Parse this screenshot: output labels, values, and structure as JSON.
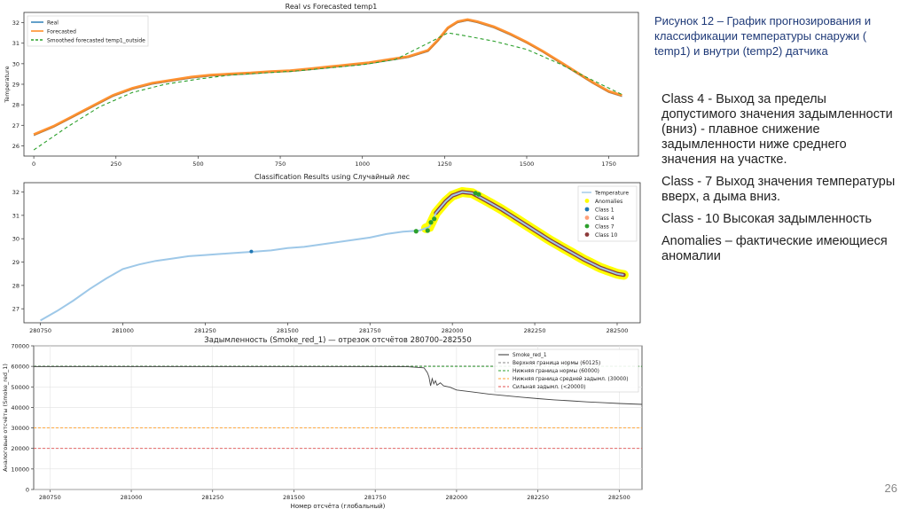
{
  "caption": "Рисунок 12 – График прогнозирования и классификации температуры снаружи ( temp1) и внутри (temp2) датчика",
  "descriptions": [
    "Class 4 - Выход за пределы допустимого значения задымленности (вниз) - плавное снижение задымленности ниже среднего значения на участке.",
    "Class - 7 Выход значения температуры вверх, а дыма вниз.",
    "Class - 10 Высокая задымленность",
    "Anomalies – фактические имеющиеся аномалии"
  ],
  "page_number": "26",
  "chart_data": [
    {
      "type": "line",
      "title": "Real vs Forecasted temp1",
      "xlabel": "",
      "ylabel": "Temperature",
      "xlim": [
        -30,
        1840
      ],
      "ylim": [
        25.5,
        32.5
      ],
      "x_ticks": [
        0,
        250,
        500,
        750,
        1000,
        1250,
        1500,
        1750
      ],
      "y_ticks": [
        26,
        27,
        28,
        29,
        30,
        31,
        32
      ],
      "legend": "top-left",
      "series": [
        {
          "name": "Real",
          "color": "#1f77b4",
          "x": [
            0,
            60,
            120,
            180,
            240,
            300,
            360,
            420,
            480,
            540,
            600,
            660,
            720,
            780,
            840,
            900,
            960,
            1020,
            1080,
            1140,
            1200,
            1230,
            1260,
            1290,
            1320,
            1350,
            1400,
            1450,
            1500,
            1550,
            1600,
            1650,
            1700,
            1750,
            1790
          ],
          "y": [
            26.5,
            26.9,
            27.4,
            27.9,
            28.4,
            28.75,
            29.0,
            29.15,
            29.3,
            29.4,
            29.45,
            29.5,
            29.58,
            29.62,
            29.7,
            29.8,
            29.9,
            30.0,
            30.15,
            30.3,
            30.6,
            31.1,
            31.7,
            32.0,
            32.1,
            32.0,
            31.75,
            31.4,
            31.0,
            30.55,
            30.05,
            29.55,
            29.05,
            28.6,
            28.4
          ]
        },
        {
          "name": "Forecasted",
          "color": "#ff7f0e",
          "x": [
            0,
            60,
            120,
            180,
            240,
            300,
            360,
            420,
            480,
            540,
            600,
            660,
            720,
            780,
            840,
            900,
            960,
            1020,
            1080,
            1140,
            1200,
            1230,
            1260,
            1290,
            1320,
            1350,
            1400,
            1450,
            1500,
            1550,
            1600,
            1650,
            1700,
            1750,
            1790
          ],
          "y": [
            26.55,
            26.95,
            27.45,
            27.95,
            28.45,
            28.8,
            29.05,
            29.2,
            29.35,
            29.45,
            29.5,
            29.55,
            29.62,
            29.66,
            29.75,
            29.85,
            29.95,
            30.05,
            30.2,
            30.35,
            30.65,
            31.15,
            31.75,
            32.05,
            32.15,
            32.05,
            31.8,
            31.45,
            31.05,
            30.6,
            30.1,
            29.6,
            29.1,
            28.65,
            28.45
          ]
        },
        {
          "name": "Smoothed forecasted temp1_outside",
          "color": "#2ca02c",
          "dashed": true,
          "x": [
            0,
            100,
            200,
            300,
            400,
            500,
            600,
            700,
            800,
            900,
            1000,
            1100,
            1200,
            1260,
            1300,
            1400,
            1500,
            1600,
            1700,
            1790
          ],
          "y": [
            25.8,
            26.9,
            27.9,
            28.6,
            29.0,
            29.25,
            29.45,
            29.55,
            29.65,
            29.8,
            29.95,
            30.2,
            31.0,
            31.5,
            31.4,
            31.1,
            30.7,
            30.0,
            29.2,
            28.5
          ]
        }
      ]
    },
    {
      "type": "scatter",
      "title": "Classification Results using Случайный лес",
      "xlabel": "",
      "ylabel": "",
      "xlim": [
        280700,
        282570
      ],
      "ylim": [
        26.4,
        32.4
      ],
      "x_ticks": [
        280750,
        281000,
        281250,
        281500,
        281750,
        282000,
        282250,
        282500
      ],
      "y_ticks": [
        27,
        28,
        29,
        30,
        31,
        32
      ],
      "legend": "top-right",
      "series": [
        {
          "name": "Temperature",
          "color": "#9ec8e8",
          "style": "line",
          "x": [
            280750,
            280800,
            280850,
            280900,
            280950,
            281000,
            281050,
            281100,
            281150,
            281200,
            281250,
            281300,
            281350,
            281400,
            281450,
            281500,
            281550,
            281600,
            281650,
            281700,
            281750,
            281800,
            281850,
            281900,
            281930,
            281950,
            281980,
            282000,
            282030,
            282060,
            282100,
            282150,
            282200,
            282250,
            282300,
            282350,
            282400,
            282450,
            282500,
            282520
          ],
          "y": [
            26.5,
            26.9,
            27.35,
            27.85,
            28.3,
            28.7,
            28.9,
            29.05,
            29.15,
            29.25,
            29.3,
            29.35,
            29.4,
            29.45,
            29.5,
            29.6,
            29.65,
            29.75,
            29.85,
            29.95,
            30.05,
            30.2,
            30.3,
            30.35,
            30.5,
            31.1,
            31.6,
            31.85,
            32.0,
            31.95,
            31.65,
            31.25,
            30.8,
            30.35,
            29.9,
            29.5,
            29.1,
            28.75,
            28.5,
            28.45
          ]
        },
        {
          "name": "Anomalies",
          "color": "#ffff00",
          "x_range": [
            281920,
            282520
          ]
        },
        {
          "name": "Class 1",
          "color": "#1f77b4",
          "x": [
            281390
          ],
          "y": [
            29.45
          ]
        },
        {
          "name": "Class 4",
          "color": "#ffa07a",
          "x": [],
          "y": []
        },
        {
          "name": "Class 7",
          "color": "#2ca02c",
          "x": [
            281890,
            281925,
            281935,
            281945,
            282070,
            282080
          ],
          "y": [
            30.32,
            30.35,
            30.7,
            30.85,
            31.95,
            31.9
          ]
        },
        {
          "name": "Class 10",
          "color": "#8c3a3a",
          "x_range": [
            281950,
            282520
          ]
        }
      ]
    },
    {
      "type": "line",
      "title": "Задымленность (Smoke_red_1) — отрезок отсчётов 280700–282550",
      "xlabel": "Номер отсчёта (глобальный)",
      "ylabel": "Аналоговые отсчёты (Smoke_red_1)",
      "xlim": [
        280700,
        282570
      ],
      "ylim": [
        0,
        70000
      ],
      "x_ticks": [
        280750,
        281000,
        281250,
        281500,
        281750,
        282000,
        282250,
        282500
      ],
      "y_ticks": [
        0,
        10000,
        20000,
        30000,
        40000,
        50000,
        60000,
        70000
      ],
      "grid": true,
      "legend": "top-right",
      "series": [
        {
          "name": "Smoke_red_1",
          "color": "#444444",
          "x": [
            280700,
            281000,
            281500,
            281850,
            281900,
            281910,
            281915,
            281920,
            281925,
            281930,
            281935,
            281940,
            281950,
            281960,
            281980,
            282000,
            282050,
            282100,
            282150,
            282200,
            282250,
            282300,
            282350,
            282400,
            282450,
            282500,
            282570
          ],
          "y": [
            59900,
            59900,
            59900,
            59800,
            59300,
            57000,
            55000,
            50500,
            54000,
            51500,
            53000,
            50800,
            52000,
            50500,
            49800,
            48500,
            47500,
            46500,
            45700,
            45000,
            44300,
            43700,
            43200,
            42700,
            42300,
            41900,
            41500
          ]
        },
        {
          "name": "Верхняя граница нормы (60125)",
          "color": "#888888",
          "dashed": true,
          "value": 60125
        },
        {
          "name": "Нижняя граница нормы (60000)",
          "color": "#2ca02c",
          "dashed": true,
          "value": 60000
        },
        {
          "name": "Нижняя граница средней задымл. (30000)",
          "color": "#ff9f2a",
          "dashed": true,
          "value": 30000
        },
        {
          "name": "Сильная задымл. (<20000)",
          "color": "#e05050",
          "dashed": true,
          "value": 20000
        }
      ]
    }
  ]
}
